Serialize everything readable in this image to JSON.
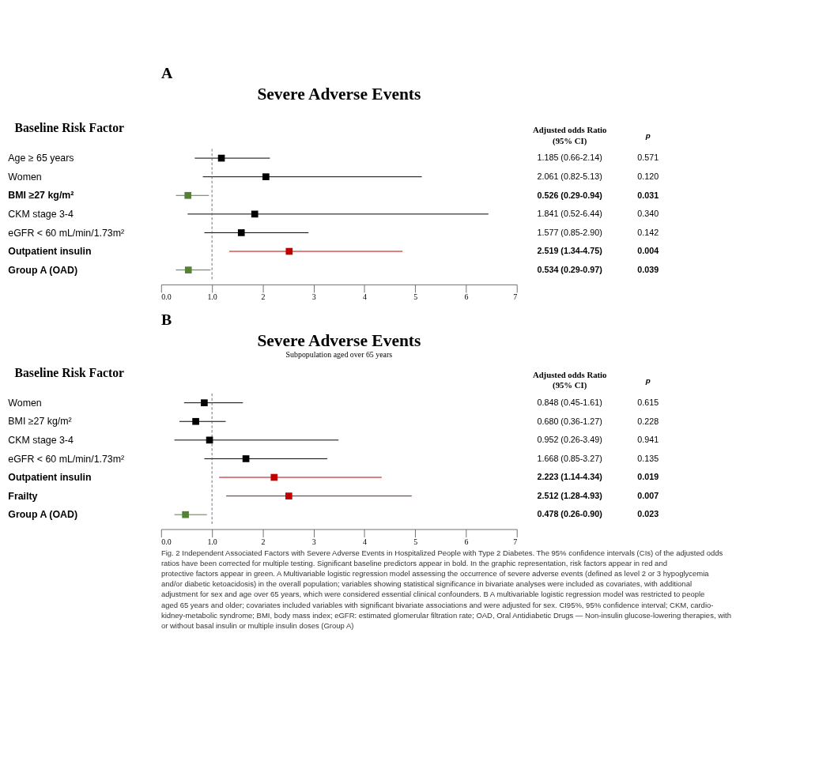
{
  "chart_data": [
    {
      "type": "scatter",
      "orientation": "horizontal",
      "title": "Severe Adverse Events",
      "ylabel": "Baseline Risk Factor",
      "categories": [
        "Age ≥ 65 years",
        "Women",
        "BMI ≥27 kg/m²",
        "CKM stage 3-4",
        "eGFR < 60 mL/min/1.73m²",
        "Outpatient insulin",
        "Group A (OAD)"
      ],
      "values": [
        1.185,
        2.061,
        0.526,
        1.841,
        1.577,
        2.519,
        0.534
      ],
      "errors": [
        [
          0.66,
          2.14
        ],
        [
          0.82,
          5.13
        ],
        [
          0.29,
          0.94
        ],
        [
          0.52,
          6.44
        ],
        [
          0.85,
          2.9
        ],
        [
          1.34,
          4.75
        ],
        [
          0.29,
          0.97
        ]
      ],
      "colors": [
        "#000000",
        "#000000",
        "#548235",
        "#000000",
        "#000000",
        "#c00000",
        "#548235"
      ],
      "value_labels": [
        "1.185 (0.66-2.14)",
        "2.061 (0.82-5.13)",
        "0.526 (0.29-0.94)",
        "1.841 (0.52-6.44)",
        "1.577 (0.85-2.90)",
        "2.519 (1.34-4.75)",
        "0.534 (0.29-0.97)"
      ],
      "xlim": [
        0,
        7
      ],
      "xticks": [
        {
          "value": 0,
          "label": "0.0"
        },
        {
          "value": 1,
          "label": "1.0"
        },
        2,
        3,
        4,
        5,
        6,
        7
      ],
      "ref_lines": [
        {
          "axis": "x",
          "value": 1,
          "line_style": "dashed",
          "color": "#555555"
        }
      ],
      "marker": "square",
      "grid": false,
      "annotations": [
        "A",
        "Adjusted odds Ratio (95% CI)",
        "p",
        "0.571",
        "0.120",
        "0.031",
        "0.340",
        "0.142",
        "0.004",
        "0.039"
      ]
    },
    {
      "type": "scatter",
      "orientation": "horizontal",
      "title": "Severe Adverse Events",
      "subtitle": "Subpopulation aged over 65 years",
      "ylabel": "Baseline Risk Factor",
      "categories": [
        "Women",
        "BMI ≥27 kg/m²",
        "CKM stage 3-4",
        "eGFR < 60 mL/min/1.73m²",
        "Outpatient insulin",
        "Frailty",
        "Group A (OAD)"
      ],
      "values": [
        0.848,
        0.68,
        0.952,
        1.668,
        2.223,
        2.512,
        0.478
      ],
      "errors": [
        [
          0.45,
          1.61
        ],
        [
          0.36,
          1.27
        ],
        [
          0.26,
          3.49
        ],
        [
          0.85,
          3.27
        ],
        [
          1.14,
          4.34
        ],
        [
          1.28,
          4.93
        ],
        [
          0.26,
          0.9
        ]
      ],
      "colors": [
        "#000000",
        "#000000",
        "#000000",
        "#000000",
        "#c00000",
        "#c00000",
        "#548235"
      ],
      "value_labels": [
        "0.848 (0.45-1.61)",
        "0.680 (0.36-1.27)",
        "0.952 (0.26-3.49)",
        "1.668 (0.85-3.27)",
        "2.223 (1.14-4.34)",
        "2.512 (1.28-4.93)",
        "0.478 (0.26-0.90)"
      ],
      "xlim": [
        0,
        7
      ],
      "xticks": [
        {
          "value": 0,
          "label": "0.0"
        },
        {
          "value": 1,
          "label": "1.0"
        },
        2,
        3,
        4,
        5,
        6,
        7
      ],
      "ref_lines": [
        {
          "axis": "x",
          "value": 1,
          "line_style": "dashed",
          "color": "#555555"
        }
      ],
      "marker": "square",
      "grid": false,
      "annotations": [
        "B",
        "Adjusted odds Ratio (95% CI)",
        "p",
        "0.615",
        "0.228",
        "0.941",
        "0.135",
        "0.019",
        "0.007",
        "0.023",
        "Fig. 2 Independent Associated Factors with Severe Adverse Events in Hospitalized People with Type 2 Diabetes. The 95% confidence intervals (CIs) of the adjusted odds ratios have been corrected for multiple testing. Significant baseline predictors appear in bold. In the graphic representation, risk factors appear in red and protective factors appear in green. A Multivariable logistic regression model assessing the occurrence of severe adverse events (defined as level 2 or 3 hypoglycemia and/or diabetic ketoacidosis) in the overall population; variables showing statistical significance in bivariate analyses were included as covariates, with additional adjustment for sex and age over 65 years, which were considered essential clinical confounders. B A multivariable logistic regression model was restricted to people aged 65 years and older; covariates included variables with significant bivariate associations and were adjusted for sex. CI95%, 95% confidence interval; CKM, cardio-kidney-metabolic syndrome; BMI, body mass index; eGFR: estimated glomerular filtration rate; OAD, Oral Antidiabetic Drugs — Non-insulin glucose-lowering therapies, with or without basal insulin or multiple insulin doses (Group A)"
      ]
    }
  ]
}
